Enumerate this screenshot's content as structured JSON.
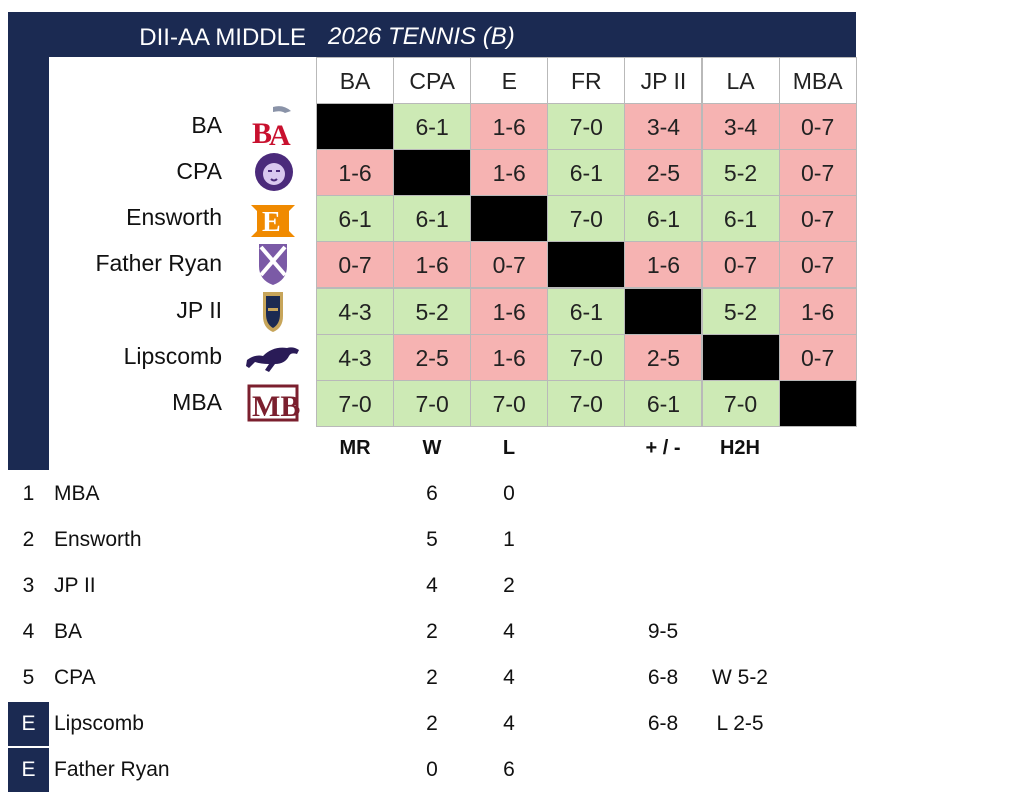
{
  "banner": {
    "left_title": "DII-AA MIDDLE",
    "right_title": "2026 TENNIS (B)"
  },
  "colors": {
    "navy": "#1b2a52",
    "win": "#cdeab5",
    "loss": "#f6b3b2",
    "self": "#000000"
  },
  "matrix": {
    "columns": [
      "BA",
      "CPA",
      "E",
      "FR",
      "JP II",
      "LA",
      "MBA"
    ],
    "rows": [
      {
        "team": "BA",
        "logo": "ba-eagle-logo",
        "results": [
          "",
          "6-1",
          "1-6",
          "7-0",
          "3-4",
          "3-4",
          "0-7"
        ]
      },
      {
        "team": "CPA",
        "logo": "cpa-lion-logo",
        "results": [
          "1-6",
          "",
          "1-6",
          "6-1",
          "2-5",
          "5-2",
          "0-7"
        ]
      },
      {
        "team": "Ensworth",
        "logo": "ensworth-e-logo",
        "results": [
          "6-1",
          "6-1",
          "",
          "7-0",
          "6-1",
          "6-1",
          "0-7"
        ]
      },
      {
        "team": "Father Ryan",
        "logo": "father-ryan-shield-logo",
        "results": [
          "0-7",
          "1-6",
          "0-7",
          "",
          "1-6",
          "0-7",
          "0-7"
        ]
      },
      {
        "team": "JP II",
        "logo": "jp2-knight-logo",
        "results": [
          "4-3",
          "5-2",
          "1-6",
          "6-1",
          "",
          "5-2",
          "1-6"
        ]
      },
      {
        "team": "Lipscomb",
        "logo": "lipscomb-mustang-logo",
        "results": [
          "4-3",
          "2-5",
          "1-6",
          "7-0",
          "2-5",
          "",
          "0-7"
        ]
      },
      {
        "team": "MBA",
        "logo": "mba-monogram-logo",
        "results": [
          "7-0",
          "7-0",
          "7-0",
          "7-0",
          "6-1",
          "7-0",
          ""
        ]
      }
    ]
  },
  "standings": {
    "headers": {
      "mr": "MR",
      "w": "W",
      "l": "L",
      "pm": "+ / -",
      "h2h": "H2H"
    },
    "rows": [
      {
        "rank": "1",
        "team": "MBA",
        "w": "6",
        "l": "0",
        "pm": "",
        "h2h": "",
        "eliminated": false
      },
      {
        "rank": "2",
        "team": "Ensworth",
        "w": "5",
        "l": "1",
        "pm": "",
        "h2h": "",
        "eliminated": false
      },
      {
        "rank": "3",
        "team": "JP II",
        "w": "4",
        "l": "2",
        "pm": "",
        "h2h": "",
        "eliminated": false
      },
      {
        "rank": "4",
        "team": "BA",
        "w": "2",
        "l": "4",
        "pm": "9-5",
        "h2h": "",
        "eliminated": false
      },
      {
        "rank": "5",
        "team": "CPA",
        "w": "2",
        "l": "4",
        "pm": "6-8",
        "h2h": "W 5-2",
        "eliminated": false
      },
      {
        "rank": "E",
        "team": "Lipscomb",
        "w": "2",
        "l": "4",
        "pm": "6-8",
        "h2h": "L 2-5",
        "eliminated": true
      },
      {
        "rank": "E",
        "team": "Father Ryan",
        "w": "0",
        "l": "6",
        "pm": "",
        "h2h": "",
        "eliminated": true
      }
    ]
  }
}
